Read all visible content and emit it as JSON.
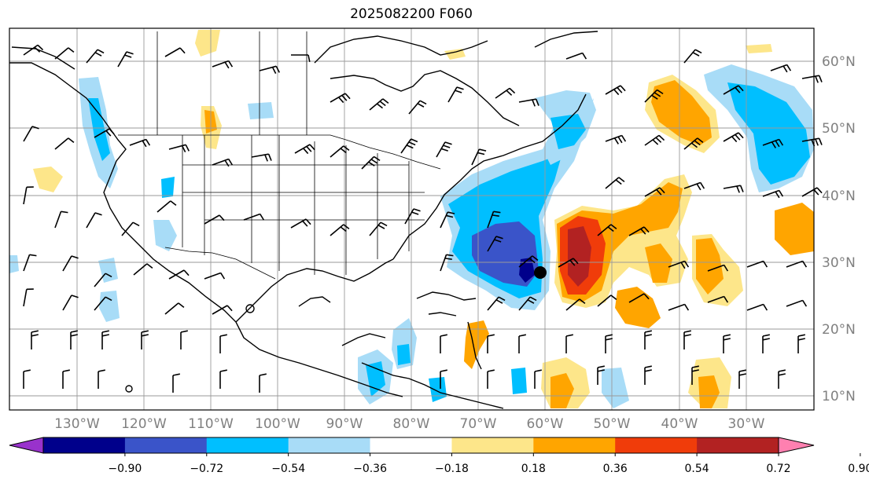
{
  "title": "2025082200 F060",
  "map": {
    "lat_labels": [
      "60°N",
      "50°N",
      "40°N",
      "30°N",
      "20°N",
      "10°N"
    ],
    "lon_labels": [
      "130°W",
      "120°W",
      "110°W",
      "100°W",
      "90°W",
      "80°W",
      "70°W",
      "60°W",
      "50°W",
      "40°W",
      "30°W"
    ],
    "grid": true,
    "land_color": "#ffffff",
    "coast_color": "#000000",
    "grid_color": "#9a9a9a"
  },
  "colorbar": {
    "ticks": [
      "−0.90",
      "−0.72",
      "−0.54",
      "−0.36",
      "−0.18",
      "0.18",
      "0.36",
      "0.54",
      "0.72",
      "0.90"
    ],
    "colors": [
      "#9932cc",
      "#00008b",
      "#3a54c9",
      "#00bfff",
      "#a8dcf7",
      "#ffffff",
      "#fde68a",
      "#ffa500",
      "#f03c0a",
      "#b22222",
      "#ff80b0"
    ],
    "extend": "both"
  },
  "features": {
    "storm_marker": "tropical-cyclone-dot"
  }
}
